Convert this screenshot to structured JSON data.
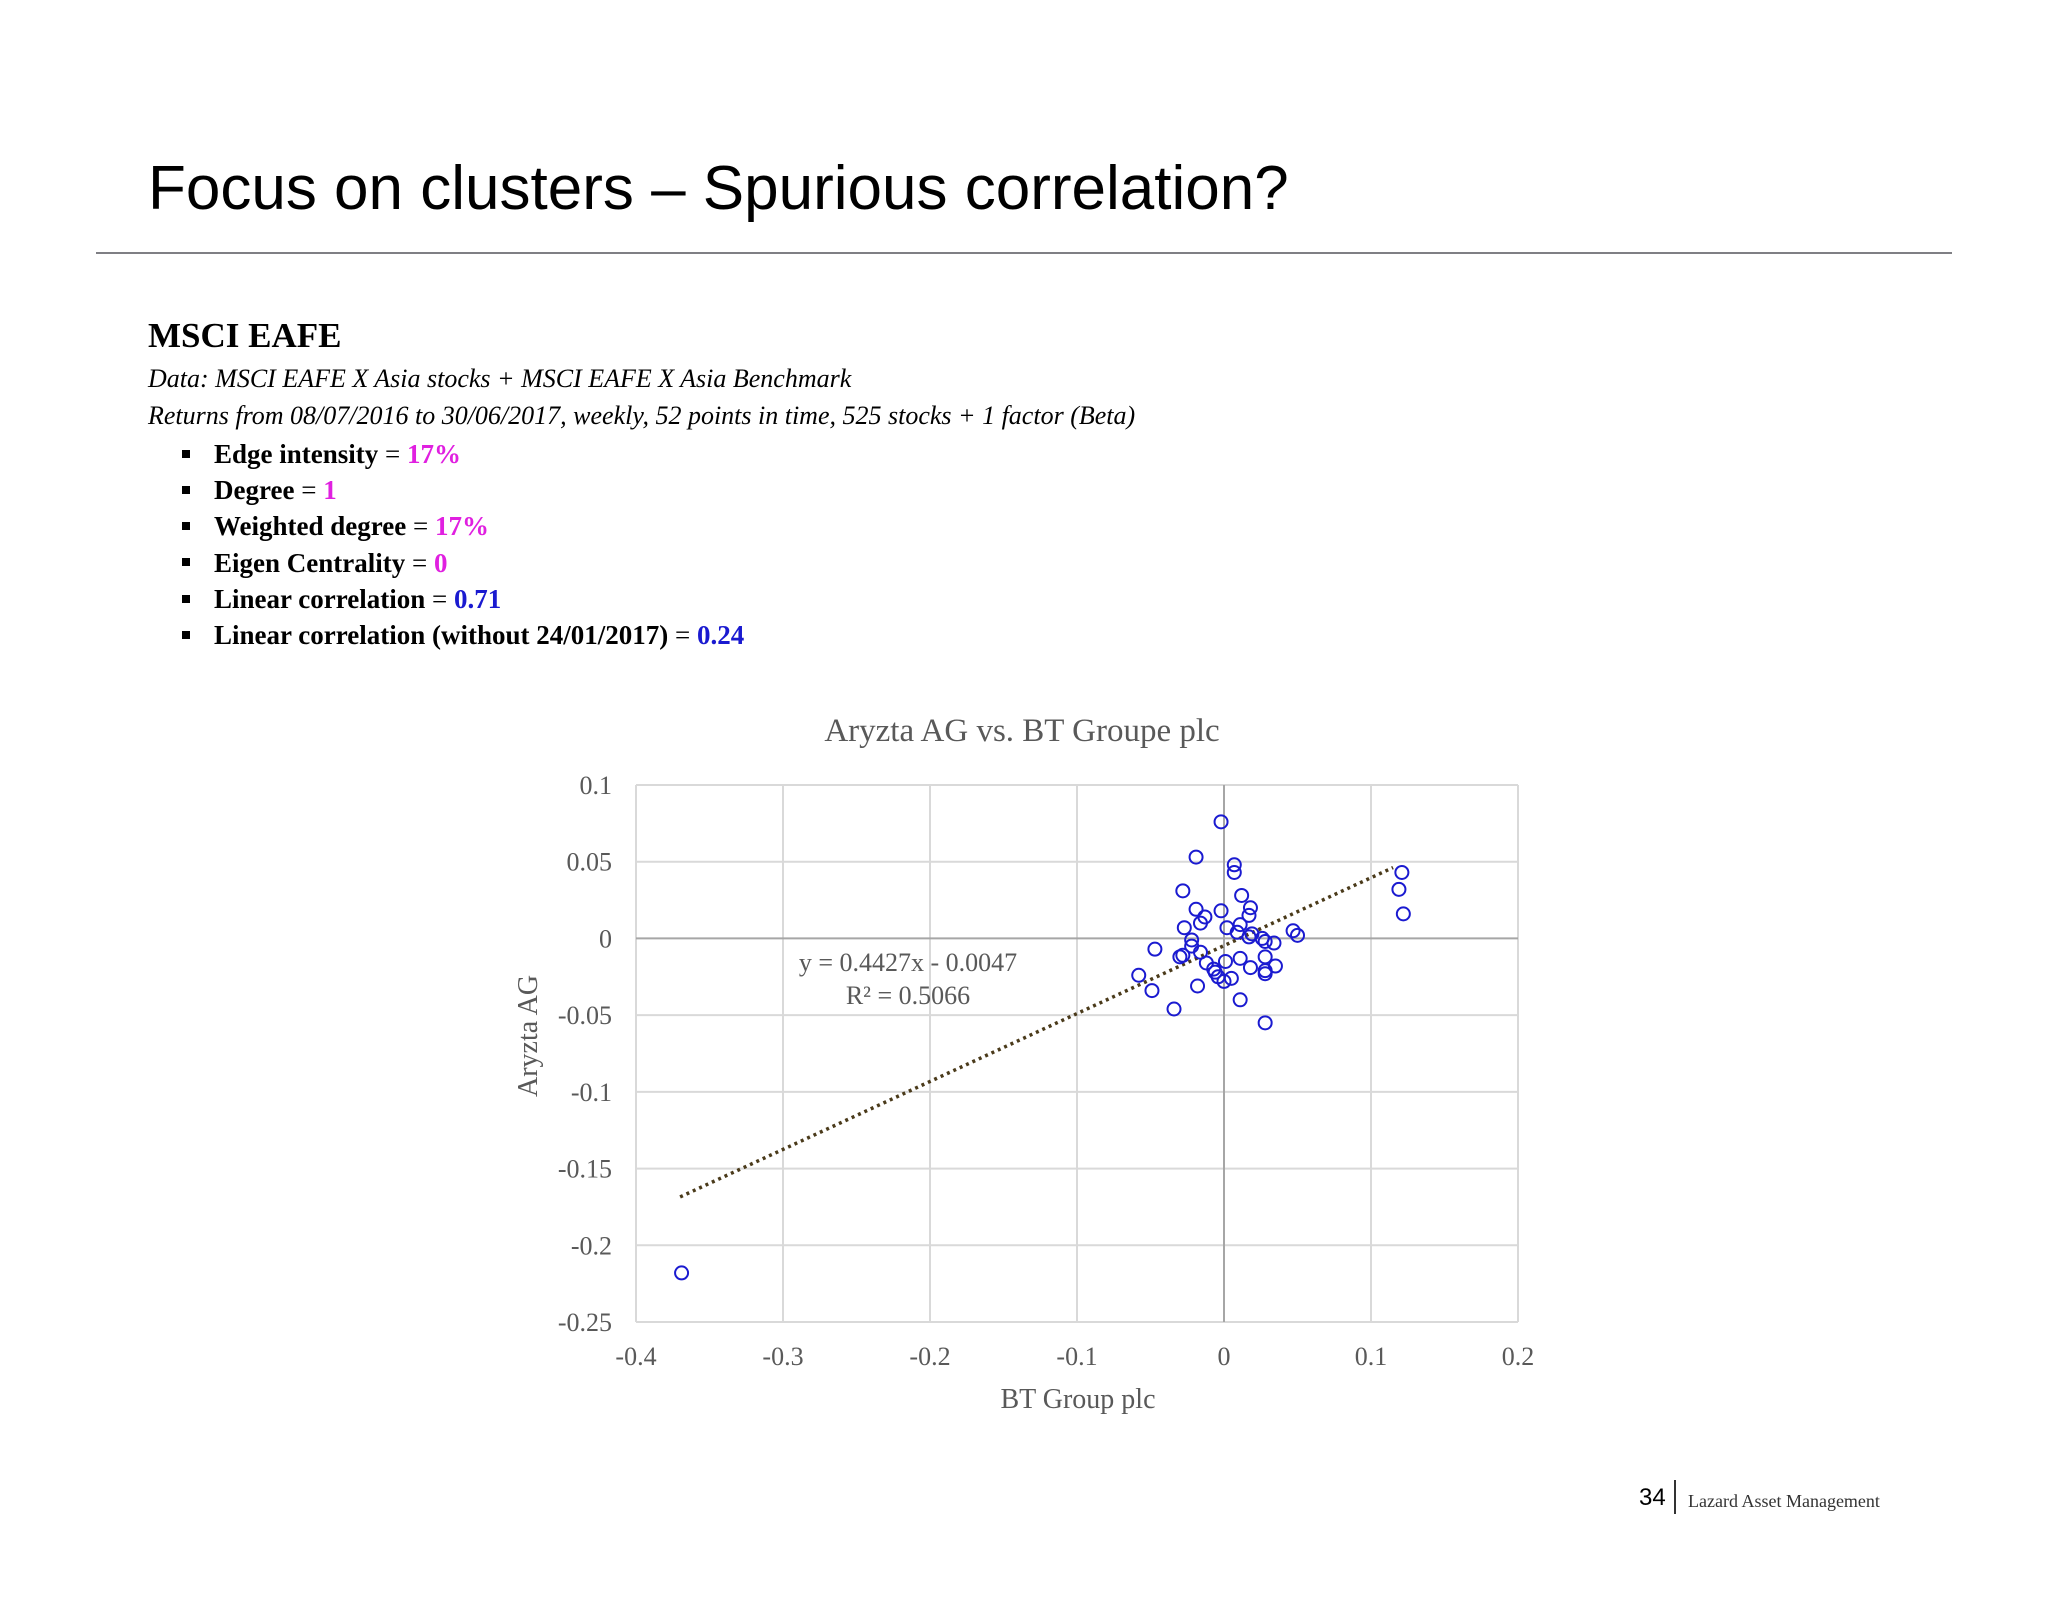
{
  "slide": {
    "title": "Focus on clusters – Spurious correlation?",
    "section_heading": "MSCI EAFE",
    "data_line": "Data: MSCI EAFE X Asia stocks + MSCI EAFE X Asia Benchmark",
    "returns_line": "Returns from 08/07/2016 to 30/06/2017, weekly, 52 points in time, 525 stocks + 1 factor (Beta)",
    "metrics": [
      {
        "label": "Edge intensity",
        "eq": " = ",
        "value": "17%",
        "value_color": "#e020e0"
      },
      {
        "label": "Degree",
        "eq": " = ",
        "value": "1",
        "value_color": "#e020e0"
      },
      {
        "label": "Weighted degree",
        "eq": " = ",
        "value": "17%",
        "value_color": "#e020e0"
      },
      {
        "label": "Eigen Centrality",
        "eq": " = ",
        "value": "0",
        "value_color": "#e020e0"
      },
      {
        "label": "Linear correlation",
        "eq": " = ",
        "value": "0.71",
        "value_color": "#1a1ad0"
      },
      {
        "label": "Linear correlation (without 24/01/2017)",
        "eq": " = ",
        "value": "0.24",
        "value_color": "#1a1ad0"
      }
    ]
  },
  "chart_data": {
    "type": "scatter",
    "title": "Aryzta AG vs. BT Groupe plc",
    "xlabel": "BT Group plc",
    "ylabel": "Aryzta AG",
    "xlim": [
      -0.4,
      0.2
    ],
    "ylim": [
      -0.25,
      0.1
    ],
    "x_ticks": [
      -0.4,
      -0.3,
      -0.2,
      -0.1,
      0,
      0.1,
      0.2
    ],
    "x_tick_labels": [
      "-0.4",
      "-0.3",
      "-0.2",
      "-0.1",
      "0",
      "0.1",
      "0.2"
    ],
    "y_ticks": [
      0.1,
      0.05,
      0,
      -0.05,
      -0.1,
      -0.15,
      -0.2,
      -0.25
    ],
    "y_tick_labels": [
      "0.1",
      "0.05",
      "0",
      "-0.05",
      "-0.1",
      "-0.15",
      "-0.2",
      "-0.25"
    ],
    "grid": true,
    "marker_color": "#1a1ad0",
    "trendline_color": "#4a3a1a",
    "trendline": {
      "slope": 0.4427,
      "intercept": -0.0047,
      "x_range": [
        -0.37,
        0.115
      ],
      "equation_label": "y = 0.4427x - 0.0047",
      "r2_label": "R² = 0.5066"
    },
    "points": [
      [
        -0.002,
        0.076
      ],
      [
        -0.019,
        0.053
      ],
      [
        0.007,
        0.048
      ],
      [
        0.007,
        0.043
      ],
      [
        -0.028,
        0.031
      ],
      [
        0.012,
        0.028
      ],
      [
        -0.019,
        0.019
      ],
      [
        -0.002,
        0.018
      ],
      [
        0.018,
        0.02
      ],
      [
        -0.013,
        0.014
      ],
      [
        0.017,
        0.015
      ],
      [
        -0.016,
        0.01
      ],
      [
        0.011,
        0.009
      ],
      [
        -0.027,
        0.007
      ],
      [
        0.002,
        0.007
      ],
      [
        0.009,
        0.004
      ],
      [
        0.019,
        0.003
      ],
      [
        0.017,
        0.001
      ],
      [
        0.026,
        0.0
      ],
      [
        0.047,
        0.005
      ],
      [
        0.05,
        0.002
      ],
      [
        -0.022,
        -0.001
      ],
      [
        0.028,
        -0.002
      ],
      [
        0.034,
        -0.003
      ],
      [
        -0.022,
        -0.005
      ],
      [
        -0.047,
        -0.007
      ],
      [
        -0.016,
        -0.009
      ],
      [
        -0.028,
        -0.011
      ],
      [
        -0.03,
        -0.012
      ],
      [
        0.028,
        -0.012
      ],
      [
        0.011,
        -0.013
      ],
      [
        0.001,
        -0.015
      ],
      [
        -0.012,
        -0.016
      ],
      [
        0.035,
        -0.018
      ],
      [
        0.018,
        -0.019
      ],
      [
        -0.007,
        -0.02
      ],
      [
        0.028,
        -0.021
      ],
      [
        -0.006,
        -0.022
      ],
      [
        0.028,
        -0.023
      ],
      [
        -0.058,
        -0.024
      ],
      [
        -0.004,
        -0.025
      ],
      [
        0.005,
        -0.026
      ],
      [
        0.0,
        -0.028
      ],
      [
        -0.018,
        -0.031
      ],
      [
        -0.049,
        -0.034
      ],
      [
        0.011,
        -0.04
      ],
      [
        -0.034,
        -0.046
      ],
      [
        0.028,
        -0.055
      ],
      [
        -0.369,
        -0.218
      ],
      [
        0.121,
        0.043
      ],
      [
        0.119,
        0.032
      ],
      [
        0.122,
        0.016
      ]
    ]
  },
  "footer": {
    "page_number": "34",
    "company": "Lazard Asset Management"
  }
}
